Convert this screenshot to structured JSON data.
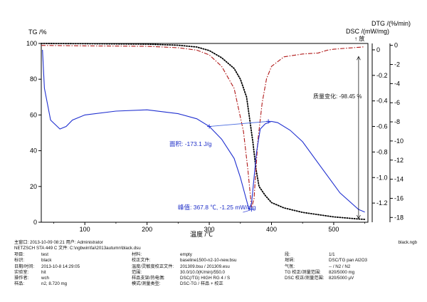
{
  "chart_data": {
    "type": "line",
    "tg_axis_label": "TG /%",
    "dtg_axis_label": "DTG /(%/min)",
    "dsc_axis_label": "DSC /(mW/mg)",
    "exo_label": "↑ 放",
    "xlabel": "温度 /℃",
    "xlim": [
      30,
      555
    ],
    "tg_ylim": [
      0,
      100
    ],
    "dtg_ylim": [
      -18.5,
      0.2
    ],
    "dsc_ylim": [
      -1.35,
      0.05
    ],
    "x_ticks": [
      "100",
      "200",
      "300",
      "400",
      "500"
    ],
    "tg_ticks": [
      "0",
      "20",
      "40",
      "60",
      "80",
      "100"
    ],
    "dsc_ticks": [
      "0",
      "-0.2",
      "-0.4",
      "-0.6",
      "-0.8",
      "-1.0",
      "-1.2"
    ],
    "dtg_ticks": [
      "0",
      "-2",
      "-4",
      "-6",
      "-8",
      "-10",
      "-12",
      "-14",
      "-16",
      "-18"
    ],
    "series": [
      {
        "role": "TG",
        "axis": "tg",
        "color": "#000000",
        "style": "dotted",
        "x": [
          30,
          100,
          200,
          250,
          280,
          300,
          320,
          340,
          350,
          360,
          370,
          375,
          380,
          390,
          400,
          420,
          450,
          500,
          540,
          550
        ],
        "y": [
          100,
          99.9,
          99.6,
          99,
          98,
          96,
          92,
          86,
          80,
          70,
          45,
          30,
          20,
          15,
          11,
          8,
          5.5,
          3,
          1.8,
          1.6
        ]
      },
      {
        "role": "DTG",
        "axis": "dtg",
        "color": "#b01818",
        "style": "dashdot",
        "x": [
          30,
          100,
          200,
          250,
          280,
          300,
          320,
          340,
          355,
          362,
          368,
          372,
          378,
          385,
          392,
          400,
          420,
          450,
          475,
          490,
          500,
          520,
          540,
          550
        ],
        "y": [
          0,
          -0.05,
          -0.1,
          -0.25,
          -0.5,
          -1.0,
          -2.2,
          -4.5,
          -9,
          -13,
          -17,
          -16,
          -10,
          -6,
          -3.5,
          -2.2,
          -1.2,
          -0.9,
          -0.8,
          -0.5,
          -0.4,
          -0.3,
          -0.2,
          -0.15
        ]
      },
      {
        "role": "DSC",
        "axis": "dsc",
        "color": "#2030d0",
        "style": "solid",
        "x": [
          32,
          35,
          45,
          60,
          70,
          80,
          100,
          150,
          200,
          250,
          280,
          300,
          320,
          340,
          350,
          360,
          364,
          368,
          372,
          376,
          382,
          390,
          400,
          410,
          430,
          450,
          480,
          510,
          540,
          550
        ],
        "y": [
          0.0,
          -0.3,
          -0.55,
          -0.62,
          -0.6,
          -0.55,
          -0.51,
          -0.48,
          -0.47,
          -0.5,
          -0.54,
          -0.6,
          -0.7,
          -0.85,
          -1.0,
          -1.18,
          -1.25,
          -1.2,
          -1.0,
          -0.8,
          -0.62,
          -0.58,
          -0.56,
          -0.57,
          -0.63,
          -0.72,
          -0.92,
          -1.12,
          -1.25,
          -1.27
        ]
      }
    ],
    "annotations": {
      "mass_change": "质量变化: -98.45 %",
      "area": "面积: -173.1 J/g",
      "peak": "峰值: 367.8 ℃, -1.25 mW/mg"
    },
    "grid": false,
    "legend": "none"
  },
  "footer": {
    "header_left": "主窗口: 2013-10-09 08:21  用户: Administrator",
    "header_instrument": "NETZSCH STA 449 C  文件:  C:\\ngbwin\\fai\\2013autumn\\black.dsu",
    "header_right": "black.ngb",
    "col1": [
      {
        "k": "项目:",
        "v": "test"
      },
      {
        "k": "标识:",
        "v": "black"
      },
      {
        "k": "日期/时间:",
        "v": "2013-10-8 14:29:05"
      },
      {
        "k": "实验室:",
        "v": "hit"
      },
      {
        "k": "操作者:",
        "v": "wch"
      },
      {
        "k": "样品:",
        "v": "n2, 8.720 mg"
      }
    ],
    "col2": [
      {
        "k": "材料:",
        "v": "empty"
      },
      {
        "k": "校正文件:",
        "v": "baseline1500-n2-10-new.bsu"
      },
      {
        "k": "温度/灵敏度校正文件:",
        "v": "201309.bsu / 201309.esu"
      },
      {
        "k": "范围:",
        "v": "30.0/10.0(K/min)/550.0"
      },
      {
        "k": "样品支架/热电偶:",
        "v": "DSC(/TG) HIGH RG 4 / S"
      },
      {
        "k": "模式/测量类型:",
        "v": "DSC-TG / 样品 + 校正"
      }
    ],
    "col3": [
      {
        "k": "段:",
        "v": "1/1"
      },
      {
        "k": "坩埚:",
        "v": "DSC/TG pan Al2O3"
      },
      {
        "k": "气氛:",
        "v": "-- / N2 / N2"
      },
      {
        "k": "TG 校正/测量范围:",
        "v": "820/5000 mg"
      },
      {
        "k": "DSC 校正/测量范围:",
        "v": "820/5000 μV"
      }
    ]
  }
}
